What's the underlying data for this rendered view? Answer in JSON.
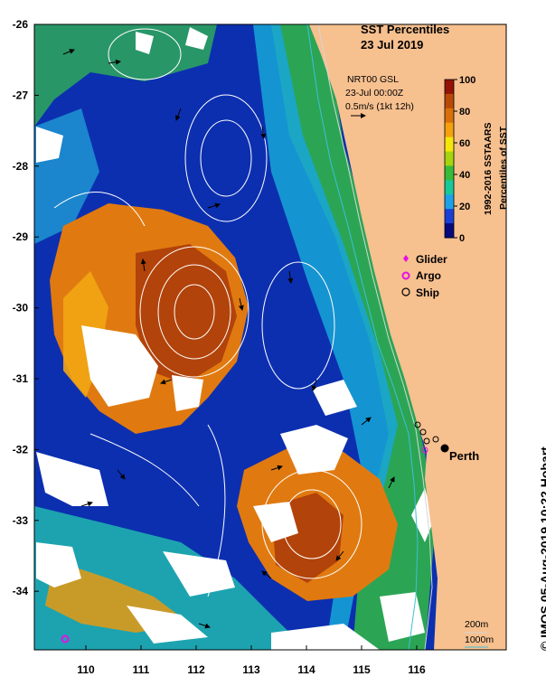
{
  "title": {
    "line1": "SST Percentiles",
    "line2": "23 Jul 2019"
  },
  "velocity": {
    "source": "NRT00 GSL",
    "time": "23-Jul 00:00Z",
    "scale": "0.5m/s (1kt 12h)"
  },
  "colorbar": {
    "label1": "1992-2016 SSTAARS",
    "label2": "Percentiles of SST",
    "ticks": [
      "0",
      "20",
      "40",
      "60",
      "80",
      "100"
    ],
    "colors": [
      "#08097d",
      "#1a3fd6",
      "#1da1e6",
      "#18c89a",
      "#36bb3a",
      "#a6d40e",
      "#f5e60c",
      "#f3a10f",
      "#d8710a",
      "#b84a08",
      "#951304"
    ]
  },
  "legend": [
    {
      "label": "Glider",
      "symbol": "diamond-icon",
      "color": "#e60ee6"
    },
    {
      "label": "Argo",
      "symbol": "argo-circle-icon",
      "color": "#e60ee6"
    },
    {
      "label": "Ship",
      "symbol": "ship-circle-icon",
      "color": "#000000"
    }
  ],
  "axes": {
    "x_ticks": [
      "110",
      "111",
      "112",
      "113",
      "114",
      "115",
      "116"
    ],
    "y_ticks": [
      "-26",
      "-27",
      "-28",
      "-29",
      "-30",
      "-31",
      "-32",
      "-33",
      "-34"
    ]
  },
  "place": {
    "name": "Perth"
  },
  "depth_legend": {
    "c200": "200m",
    "c1000": "1000m"
  },
  "credit": "© IMOS 05-Aug-2019 10:22 Hobart",
  "colors": {
    "land": "#f7c08f",
    "ocean_base": "#0c2fb0"
  }
}
